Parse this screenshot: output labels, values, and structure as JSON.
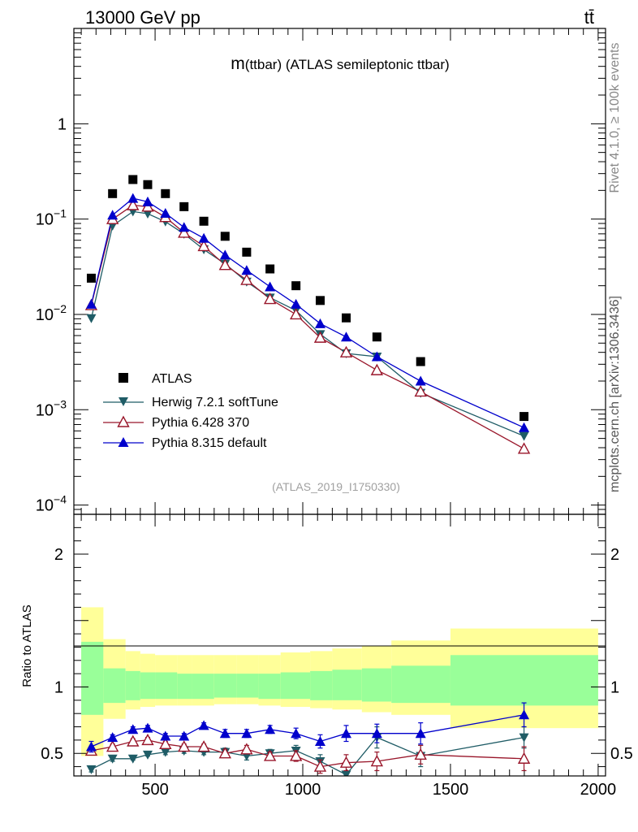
{
  "header": {
    "left": "13000 GeV pp",
    "right": "tt̄"
  },
  "side_labels": {
    "rivet": "Rivet 4.1.0, ≥ 100k events",
    "mcplots": "mcplots.cern.ch [arXiv:1306.3436]"
  },
  "colors": {
    "atlas": "#000000",
    "herwig": "#1f5c66",
    "pythia6": "#99162a",
    "pythia8": "#0000cc",
    "band_inner": "#99ff99",
    "band_outer": "#ffff99"
  },
  "chart_data": {
    "type": "scatter",
    "title": "m(ttbar) (ATLAS semileptonic ttbar)",
    "title_parts": {
      "m": "m",
      "rest": "(ttbar) (ATLAS semileptonic ttbar)"
    },
    "analysis_id": "(ATLAS_2019_I1750330)",
    "xlim": [
      225,
      2025
    ],
    "xticks": [
      500,
      1000,
      1500,
      2000
    ],
    "xtick_labels": [
      "500",
      "1000",
      "1500",
      "2000"
    ],
    "main": {
      "yscale": "log",
      "ylim": [
        8e-05,
        10
      ],
      "yticks": [
        {
          "value": 1,
          "base": "1",
          "exp": ""
        },
        {
          "value": 0.1,
          "base": "10",
          "exp": "−1"
        },
        {
          "value": 0.01,
          "base": "10",
          "exp": "−2"
        },
        {
          "value": 0.001,
          "base": "10",
          "exp": "−3"
        },
        {
          "value": 0.0001,
          "base": "10",
          "exp": "−4"
        }
      ]
    },
    "ratio": {
      "ylabel": "Ratio to ATLAS",
      "ylim": [
        0.33,
        2.3
      ],
      "yticks": [
        0.5,
        1,
        2
      ],
      "ytick_labels": [
        "0.5",
        "1",
        "2"
      ]
    },
    "bins": [
      [
        250,
        325
      ],
      [
        325,
        400
      ],
      [
        400,
        450
      ],
      [
        450,
        500
      ],
      [
        500,
        575
      ],
      [
        575,
        625
      ],
      [
        625,
        700
      ],
      [
        700,
        775
      ],
      [
        775,
        850
      ],
      [
        850,
        925
      ],
      [
        925,
        1025
      ],
      [
        1025,
        1100
      ],
      [
        1100,
        1200
      ],
      [
        1200,
        1300
      ],
      [
        1300,
        1500
      ],
      [
        1500,
        2000
      ]
    ],
    "x": [
      284,
      356,
      425,
      475,
      535,
      598,
      665,
      737,
      810,
      889,
      977,
      1059,
      1147,
      1251,
      1399,
      1749
    ],
    "legend": [
      "ATLAS",
      "Herwig 7.2.1 softTune",
      "Pythia 6.428 370",
      "Pythia 8.315 default"
    ],
    "series": [
      {
        "name": "ATLAS",
        "key": "atlas",
        "marker": "square",
        "values": [
          0.024,
          0.185,
          0.26,
          0.23,
          0.185,
          0.135,
          0.095,
          0.066,
          0.045,
          0.03,
          0.02,
          0.014,
          0.0092,
          0.0058,
          0.0032,
          0.00085
        ],
        "band_inner": [
          [
            0.79,
            1.34
          ],
          [
            0.88,
            1.14
          ],
          [
            0.9,
            1.12
          ],
          [
            0.91,
            1.11
          ],
          [
            0.91,
            1.11
          ],
          [
            0.91,
            1.1
          ],
          [
            0.91,
            1.1
          ],
          [
            0.92,
            1.1
          ],
          [
            0.92,
            1.1
          ],
          [
            0.91,
            1.1
          ],
          [
            0.91,
            1.11
          ],
          [
            0.9,
            1.12
          ],
          [
            0.9,
            1.13
          ],
          [
            0.89,
            1.14
          ],
          [
            0.88,
            1.16
          ],
          [
            0.86,
            1.24
          ]
        ],
        "band_outer": [
          [
            0.48,
            1.6
          ],
          [
            0.76,
            1.36
          ],
          [
            0.83,
            1.27
          ],
          [
            0.85,
            1.25
          ],
          [
            0.86,
            1.24
          ],
          [
            0.86,
            1.24
          ],
          [
            0.86,
            1.24
          ],
          [
            0.87,
            1.24
          ],
          [
            0.87,
            1.24
          ],
          [
            0.86,
            1.24
          ],
          [
            0.85,
            1.26
          ],
          [
            0.84,
            1.27
          ],
          [
            0.83,
            1.29
          ],
          [
            0.81,
            1.31
          ],
          [
            0.79,
            1.35
          ],
          [
            0.69,
            1.44
          ]
        ]
      },
      {
        "name": "Herwig 7.2.1 softTune",
        "key": "herwig",
        "marker": "triangle-down",
        "values": [
          0.0091,
          0.085,
          0.12,
          0.114,
          0.094,
          0.07,
          0.048,
          0.034,
          0.022,
          0.015,
          0.011,
          0.0062,
          0.0039,
          0.0036,
          0.0015,
          0.00053
        ],
        "ratio": [
          0.38,
          0.46,
          0.46,
          0.49,
          0.51,
          0.52,
          0.51,
          0.51,
          0.48,
          0.5,
          0.52,
          0.44,
          0.34,
          0.62,
          0.48,
          0.62
        ],
        "ratio_err": [
          0.02,
          0.02,
          0.01,
          0.01,
          0.02,
          0.02,
          0.02,
          0.03,
          0.03,
          0.03,
          0.04,
          0.05,
          0.07,
          0.08,
          0.08,
          0.08
        ]
      },
      {
        "name": "Pythia 6.428 370",
        "key": "pythia6",
        "marker": "triangle-up-open",
        "values": [
          0.0125,
          0.1,
          0.14,
          0.135,
          0.105,
          0.072,
          0.052,
          0.033,
          0.023,
          0.0145,
          0.01,
          0.0057,
          0.004,
          0.0026,
          0.00155,
          0.00039
        ],
        "ratio": [
          0.52,
          0.55,
          0.59,
          0.6,
          0.57,
          0.55,
          0.55,
          0.5,
          0.53,
          0.48,
          0.48,
          0.4,
          0.43,
          0.44,
          0.49,
          0.46
        ],
        "ratio_err": [
          0.02,
          0.02,
          0.02,
          0.02,
          0.02,
          0.02,
          0.02,
          0.03,
          0.03,
          0.03,
          0.04,
          0.05,
          0.06,
          0.07,
          0.07,
          0.09
        ]
      },
      {
        "name": "Pythia 8.315 default",
        "key": "pythia8",
        "marker": "triangle-up",
        "values": [
          0.0128,
          0.11,
          0.165,
          0.152,
          0.115,
          0.082,
          0.063,
          0.042,
          0.029,
          0.0195,
          0.0128,
          0.008,
          0.0058,
          0.0036,
          0.002,
          0.00065
        ],
        "ratio": [
          0.55,
          0.62,
          0.68,
          0.69,
          0.63,
          0.63,
          0.71,
          0.65,
          0.65,
          0.68,
          0.65,
          0.59,
          0.65,
          0.65,
          0.65,
          0.79
        ],
        "ratio_err": [
          0.04,
          0.02,
          0.02,
          0.02,
          0.02,
          0.02,
          0.02,
          0.03,
          0.03,
          0.03,
          0.04,
          0.05,
          0.06,
          0.07,
          0.08,
          0.09
        ]
      }
    ]
  }
}
